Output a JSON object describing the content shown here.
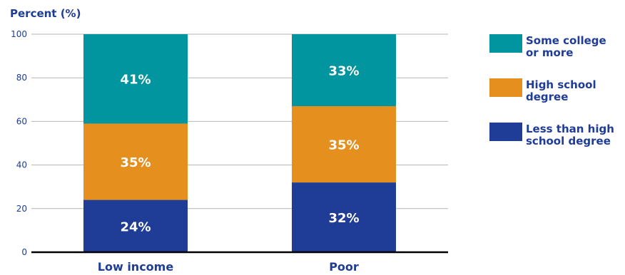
{
  "chart_data": {
    "type": "bar",
    "stacked": true,
    "ylabel": "Percent (%)",
    "xlabel": "",
    "ylim": [
      0,
      100
    ],
    "yticks": [
      0,
      20,
      40,
      60,
      80,
      100
    ],
    "grid": true,
    "legend_position": "right",
    "categories": [
      "Low income",
      "Poor"
    ],
    "series": [
      {
        "name": "Less than high school degree",
        "values": [
          24,
          32
        ],
        "labels": [
          "24%",
          "32%"
        ],
        "color": "#1f3c96"
      },
      {
        "name": "High school degree",
        "values": [
          35,
          35
        ],
        "labels": [
          "35%",
          "35%"
        ],
        "color": "#e5901e"
      },
      {
        "name": "Some college or more",
        "values": [
          41,
          33
        ],
        "labels": [
          "41%",
          "33%"
        ],
        "color": "#00959f"
      }
    ],
    "legend": [
      {
        "lines": [
          "Some college",
          "or more"
        ],
        "color": "#00959f"
      },
      {
        "lines": [
          "High school",
          "degree"
        ],
        "color": "#e5901e"
      },
      {
        "lines": [
          "Less than high",
          "school degree"
        ],
        "color": "#1f3c96"
      }
    ],
    "colors": {
      "text": "#1f3c96",
      "axis": "#000000",
      "grid": "#b5b5b5",
      "data_label": "#ffffff"
    }
  }
}
